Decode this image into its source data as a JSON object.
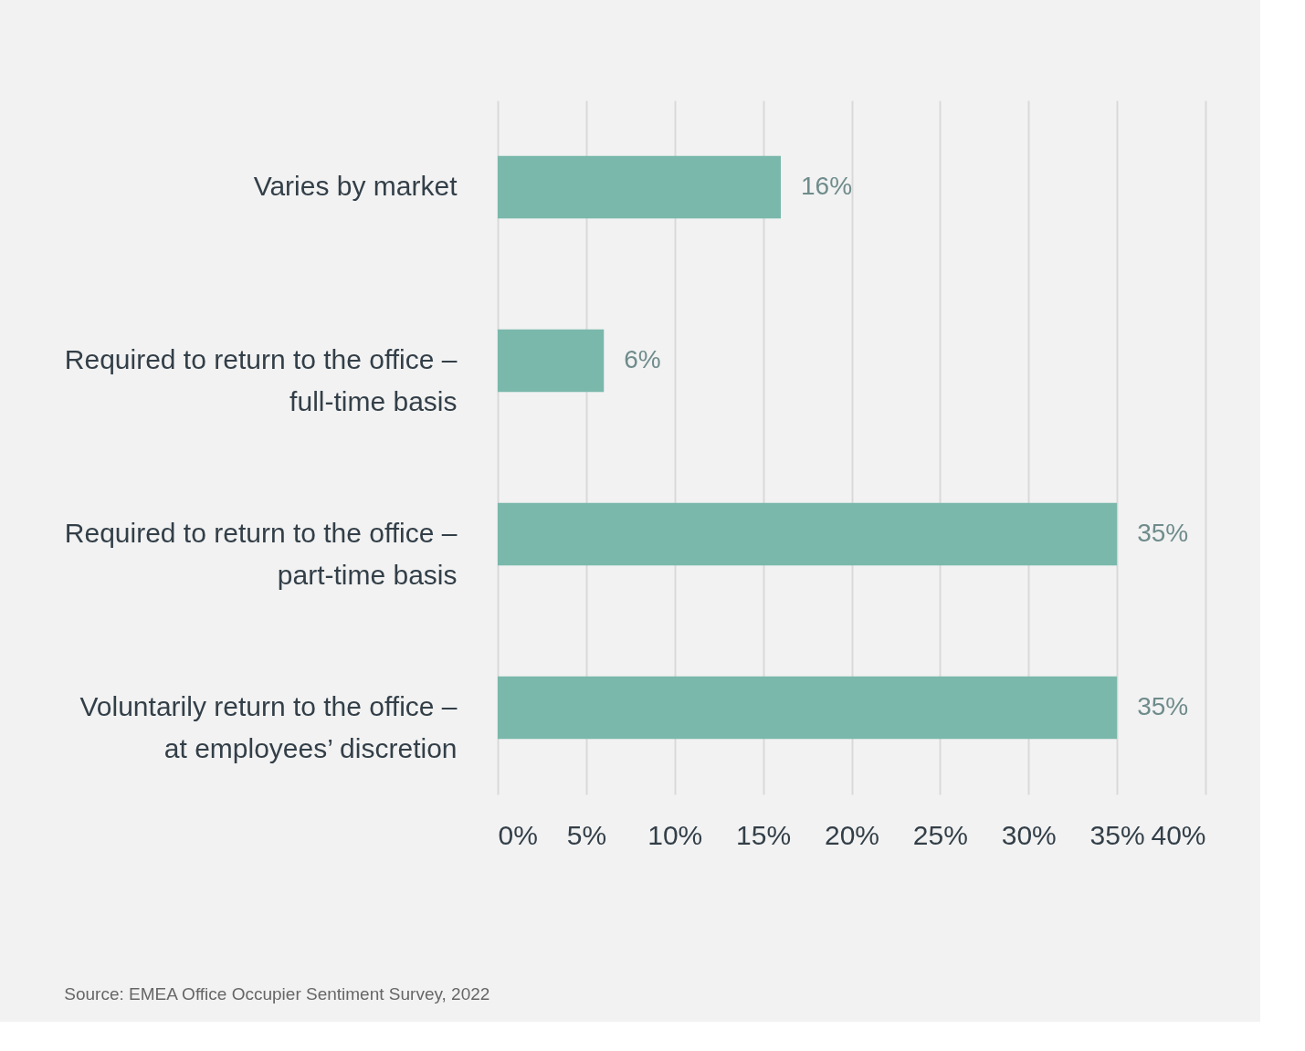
{
  "chart_data": {
    "type": "bar",
    "orientation": "horizontal",
    "categories": [
      "Varies by market",
      "Required to return to the office – full-time basis",
      "Required to return to the office – part-time basis",
      "Voluntarily return to the office – at employees’ discretion"
    ],
    "values": [
      16,
      6,
      35,
      35
    ],
    "color": "#7ab8ab",
    "value_labels": [
      "16%",
      "6%",
      "35%",
      "35%"
    ],
    "xlim": [
      0,
      40
    ],
    "xticks": [
      {
        "value": 0,
        "label": "0%"
      },
      {
        "value": 5,
        "label": "5%"
      },
      {
        "value": 10,
        "label": "10%"
      },
      {
        "value": 15,
        "label": "15%"
      },
      {
        "value": 20,
        "label": "20%"
      },
      {
        "value": 25,
        "label": "25%"
      },
      {
        "value": 30,
        "label": "30%"
      },
      {
        "value": 35,
        "label": "35%"
      },
      {
        "value": 40,
        "label": "40%"
      }
    ],
    "grid": "x",
    "annotations": [
      "Source: EMEA Office Occupier Sentiment Survey, 2022"
    ]
  }
}
